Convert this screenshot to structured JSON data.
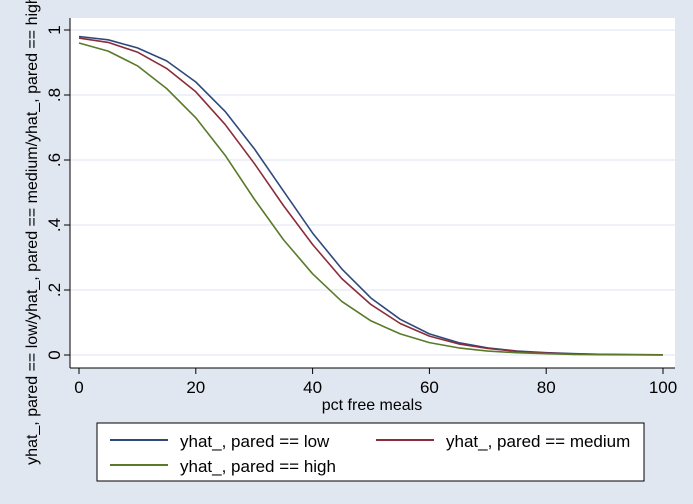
{
  "chart_data": {
    "type": "line",
    "title": "",
    "xlabel": "pct free meals",
    "ylabel": "yhat_, pared == low/yhat_, pared == medium/yhat_, pared == high",
    "xlim": [
      0,
      100
    ],
    "ylim": [
      0,
      1
    ],
    "x_ticks": [
      0,
      20,
      40,
      60,
      80,
      100
    ],
    "y_ticks": [
      0,
      0.2,
      0.4,
      0.6,
      0.8,
      1
    ],
    "x_tick_labels": [
      "0",
      "20",
      "40",
      "60",
      "80",
      "100"
    ],
    "y_tick_labels": [
      "0",
      ".2",
      ".4",
      ".6",
      ".8",
      "1"
    ],
    "grid": true,
    "legend_position": "bottom",
    "colors": {
      "plot_background": "#ffffff",
      "outer_background": "#e1e7f0",
      "grid": "#e9eef5"
    },
    "series": [
      {
        "name": "yhat_, pared == low",
        "color": "#2e4a7c",
        "x": [
          0,
          5,
          10,
          15,
          20,
          25,
          30,
          35,
          40,
          45,
          50,
          55,
          60,
          65,
          70,
          75,
          80,
          85,
          90,
          95,
          100
        ],
        "y": [
          0.98,
          0.97,
          0.945,
          0.905,
          0.84,
          0.75,
          0.635,
          0.505,
          0.375,
          0.265,
          0.175,
          0.11,
          0.065,
          0.038,
          0.022,
          0.012,
          0.007,
          0.004,
          0.002,
          0.001,
          0.0005
        ]
      },
      {
        "name": "yhat_, pared == medium",
        "color": "#8b2c3a",
        "x": [
          0,
          5,
          10,
          15,
          20,
          25,
          30,
          35,
          40,
          45,
          50,
          55,
          60,
          65,
          70,
          75,
          80,
          85,
          90,
          95,
          100
        ],
        "y": [
          0.975,
          0.962,
          0.932,
          0.882,
          0.81,
          0.71,
          0.59,
          0.46,
          0.34,
          0.235,
          0.155,
          0.097,
          0.058,
          0.034,
          0.02,
          0.011,
          0.006,
          0.003,
          0.002,
          0.001,
          0.0005
        ]
      },
      {
        "name": "yhat_, pared == high",
        "color": "#5a7a2a",
        "x": [
          0,
          5,
          10,
          15,
          20,
          25,
          30,
          35,
          40,
          45,
          50,
          55,
          60,
          65,
          70,
          75,
          80,
          85,
          90,
          95,
          100
        ],
        "y": [
          0.96,
          0.935,
          0.89,
          0.82,
          0.73,
          0.615,
          0.48,
          0.355,
          0.25,
          0.165,
          0.105,
          0.065,
          0.038,
          0.022,
          0.012,
          0.007,
          0.004,
          0.002,
          0.001,
          0.0005,
          0.0002
        ]
      }
    ]
  }
}
